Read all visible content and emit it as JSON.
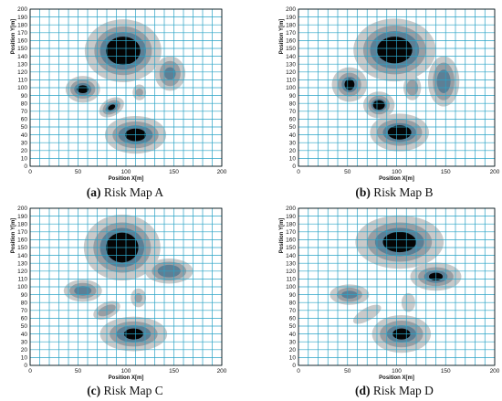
{
  "colors": {
    "grid": "#2aa3c6",
    "level1": "#c9c9c9",
    "level2": "#9a9ea3",
    "level3": "#5d7f95",
    "level4": "#050505",
    "frame": "#000000"
  },
  "chart_data": [
    {
      "type": "heatmap",
      "caption_letter": "(a)",
      "caption_text": " Risk Map A",
      "xlabel": "Position X[m]",
      "ylabel": "Position Y[m]",
      "xlim": [
        0,
        200
      ],
      "ylim": [
        0,
        200
      ],
      "xticks": [
        0,
        50,
        100,
        150,
        200
      ],
      "yticks": [
        0,
        10,
        20,
        30,
        40,
        50,
        60,
        70,
        80,
        90,
        100,
        110,
        120,
        130,
        140,
        150,
        160,
        170,
        180,
        190,
        200
      ],
      "grid": true,
      "regions": [
        {
          "x": 97,
          "y": 147,
          "rx": [
            40,
            30,
            24,
            18
          ],
          "ry": [
            40,
            31,
            24,
            18
          ],
          "rot": 0
        },
        {
          "x": 55,
          "y": 98,
          "rx": [
            18,
            13,
            9,
            6
          ],
          "ry": [
            17,
            12,
            8,
            5
          ],
          "rot": 0
        },
        {
          "x": 85,
          "y": 75,
          "rx": [
            14,
            10,
            7,
            4
          ],
          "ry": [
            11,
            8,
            5,
            3
          ],
          "rot": 30
        },
        {
          "x": 110,
          "y": 40,
          "rx": [
            32,
            24,
            18,
            11
          ],
          "ry": [
            24,
            17,
            12,
            8
          ],
          "rot": 0
        },
        {
          "x": 146,
          "y": 118,
          "rx": [
            16,
            11,
            6
          ],
          "ry": [
            22,
            16,
            8
          ],
          "rot": 0
        },
        {
          "x": 114,
          "y": 94,
          "rx": [
            7,
            4
          ],
          "ry": [
            10,
            5
          ],
          "rot": 0
        }
      ]
    },
    {
      "type": "heatmap",
      "caption_letter": "(b)",
      "caption_text": " Risk Map B",
      "xlabel": "Position X[m]",
      "ylabel": "Position Y[m]",
      "xlim": [
        0,
        200
      ],
      "ylim": [
        0,
        200
      ],
      "xticks": [
        0,
        50,
        100,
        150,
        200
      ],
      "yticks": [
        0,
        10,
        20,
        30,
        40,
        50,
        60,
        70,
        80,
        90,
        100,
        110,
        120,
        130,
        140,
        150,
        160,
        170,
        180,
        190,
        200
      ],
      "grid": true,
      "regions": [
        {
          "x": 98,
          "y": 148,
          "rx": [
            42,
            32,
            25,
            18
          ],
          "ry": [
            40,
            31,
            24,
            17
          ],
          "rot": 0
        },
        {
          "x": 52,
          "y": 104,
          "rx": [
            18,
            12,
            8,
            5
          ],
          "ry": [
            22,
            15,
            10,
            7
          ],
          "rot": 0
        },
        {
          "x": 82,
          "y": 78,
          "rx": [
            16,
            11,
            8,
            6
          ],
          "ry": [
            17,
            12,
            8,
            6
          ],
          "rot": 0
        },
        {
          "x": 103,
          "y": 43,
          "rx": [
            30,
            23,
            17,
            12
          ],
          "ry": [
            24,
            17,
            12,
            9
          ],
          "rot": 0
        },
        {
          "x": 148,
          "y": 108,
          "rx": [
            16,
            11,
            7
          ],
          "ry": [
            32,
            24,
            15
          ],
          "rot": 0
        },
        {
          "x": 116,
          "y": 100,
          "rx": [
            9,
            6
          ],
          "ry": [
            16,
            10
          ],
          "rot": 0
        }
      ]
    },
    {
      "type": "heatmap",
      "caption_letter": "(c)",
      "caption_text": " Risk Map C",
      "xlabel": "Position X[m]",
      "ylabel": "Position Y[m]",
      "xlim": [
        0,
        200
      ],
      "ylim": [
        0,
        200
      ],
      "xticks": [
        0,
        50,
        100,
        150,
        200
      ],
      "yticks": [
        0,
        10,
        20,
        30,
        40,
        50,
        60,
        70,
        80,
        90,
        100,
        110,
        120,
        130,
        140,
        150,
        160,
        170,
        180,
        190,
        200
      ],
      "grid": true,
      "regions": [
        {
          "x": 96,
          "y": 150,
          "rx": [
            40,
            30,
            23,
            17
          ],
          "ry": [
            42,
            32,
            25,
            19
          ],
          "rot": 0
        },
        {
          "x": 55,
          "y": 95,
          "rx": [
            20,
            14,
            9
          ],
          "ry": [
            14,
            10,
            6
          ],
          "rot": 0
        },
        {
          "x": 80,
          "y": 70,
          "rx": [
            15,
            10
          ],
          "ry": [
            10,
            6
          ],
          "rot": 25
        },
        {
          "x": 108,
          "y": 40,
          "rx": [
            35,
            25,
            18,
            10
          ],
          "ry": [
            22,
            16,
            11,
            7
          ],
          "rot": 0
        },
        {
          "x": 145,
          "y": 120,
          "rx": [
            25,
            18,
            12
          ],
          "ry": [
            16,
            12,
            8
          ],
          "rot": 0
        },
        {
          "x": 113,
          "y": 86,
          "rx": [
            8,
            4
          ],
          "ry": [
            12,
            6
          ],
          "rot": 0
        }
      ]
    },
    {
      "type": "heatmap",
      "caption_letter": "(d)",
      "caption_text": " Risk Map D",
      "xlabel": "Position X[m]",
      "ylabel": "Position Y[m]",
      "xlim": [
        0,
        200
      ],
      "ylim": [
        0,
        200
      ],
      "xticks": [
        0,
        50,
        100,
        150,
        200
      ],
      "yticks": [
        0,
        10,
        20,
        30,
        40,
        50,
        60,
        70,
        80,
        90,
        100,
        110,
        120,
        130,
        140,
        150,
        160,
        170,
        180,
        190,
        200
      ],
      "grid": true,
      "regions": [
        {
          "x": 103,
          "y": 157,
          "rx": [
            45,
            33,
            25,
            17
          ],
          "ry": [
            34,
            25,
            18,
            13
          ],
          "rot": 0
        },
        {
          "x": 140,
          "y": 113,
          "rx": [
            26,
            18,
            12,
            7
          ],
          "ry": [
            18,
            12,
            8,
            5
          ],
          "rot": 0
        },
        {
          "x": 52,
          "y": 90,
          "rx": [
            20,
            13,
            8
          ],
          "ry": [
            13,
            9,
            5
          ],
          "rot": 0
        },
        {
          "x": 70,
          "y": 65,
          "rx": [
            16
          ],
          "ry": [
            8
          ],
          "rot": 30
        },
        {
          "x": 105,
          "y": 40,
          "rx": [
            30,
            22,
            15,
            9
          ],
          "ry": [
            24,
            17,
            11,
            7
          ],
          "rot": 0
        },
        {
          "x": 112,
          "y": 80,
          "rx": [
            7
          ],
          "ry": [
            12
          ],
          "rot": 0
        }
      ]
    }
  ]
}
